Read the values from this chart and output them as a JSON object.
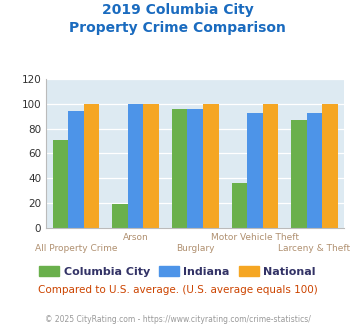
{
  "title_line1": "2019 Columbia City",
  "title_line2": "Property Crime Comparison",
  "title_color": "#1a6bbf",
  "categories": [
    "All Property Crime",
    "Arson",
    "Burglary",
    "Motor Vehicle Theft",
    "Larceny & Theft"
  ],
  "columbia_city": [
    71,
    19,
    96,
    36,
    87
  ],
  "indiana": [
    94,
    100,
    96,
    93,
    93
  ],
  "national": [
    100,
    100,
    100,
    100,
    100
  ],
  "bar_colors": {
    "columbia_city": "#6ab04c",
    "indiana": "#4d94e8",
    "national": "#f5a623"
  },
  "ylim": [
    0,
    120
  ],
  "yticks": [
    0,
    20,
    40,
    60,
    80,
    100,
    120
  ],
  "background_color": "#ddeaf2",
  "grid_color": "#ffffff",
  "xlabel_color_top": "#b09070",
  "xlabel_color_bot": "#b09070",
  "footer_note": "Compared to U.S. average. (U.S. average equals 100)",
  "footer_note_color": "#cc4400",
  "copyright": "© 2025 CityRating.com - https://www.cityrating.com/crime-statistics/",
  "copyright_color": "#999999",
  "legend_labels": [
    "Columbia City",
    "Indiana",
    "National"
  ],
  "legend_text_color": "#333366"
}
